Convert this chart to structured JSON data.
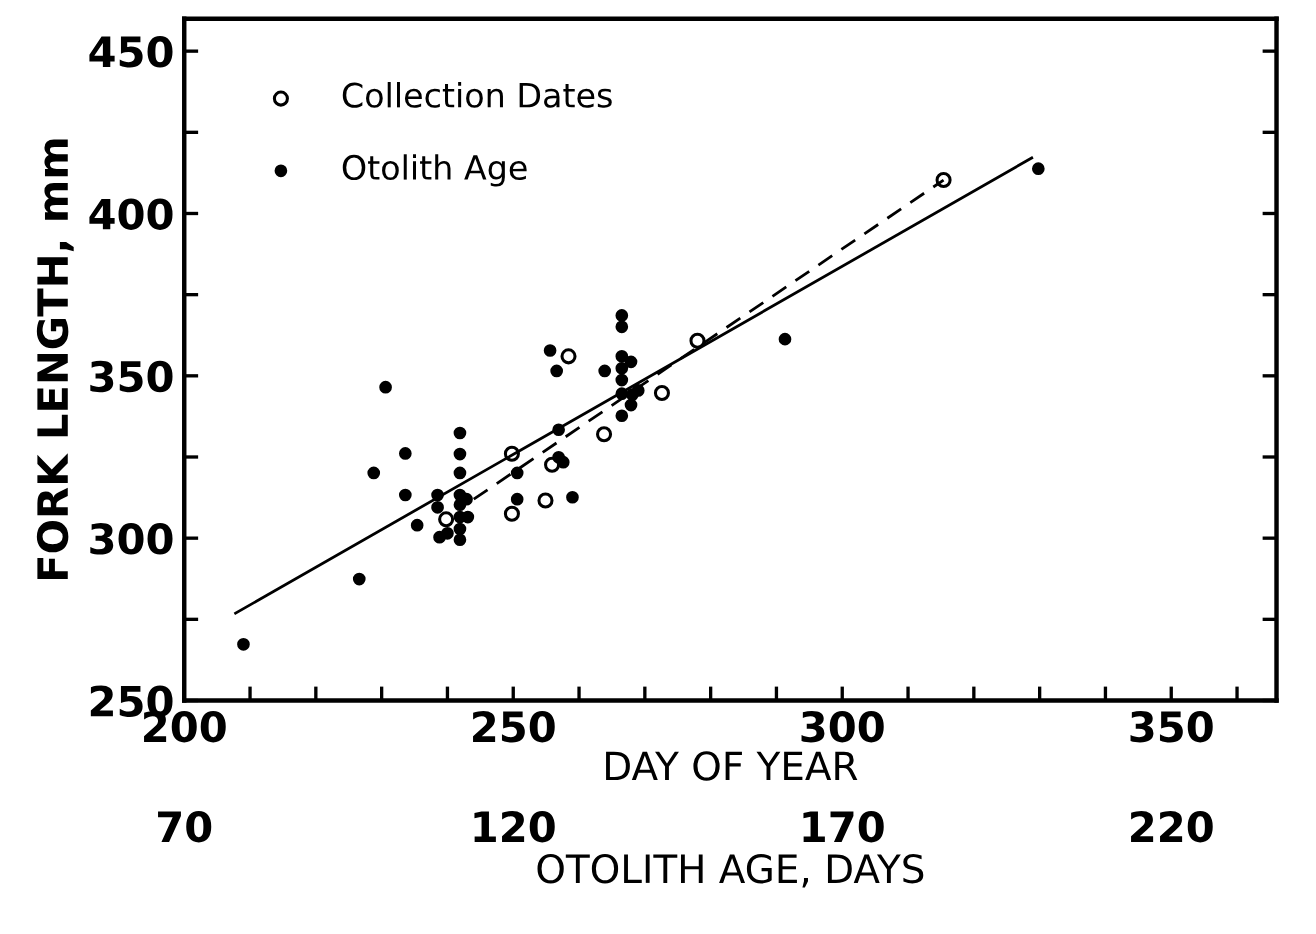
{
  "chart_data": {
    "type": "scatter",
    "xlabel": "DAY OF YEAR",
    "ylabel": "FORK LENGTH, mm",
    "x2label": "OTOLITH AGE, DAYS",
    "xlim": [
      200,
      366
    ],
    "ylim": [
      250,
      460
    ],
    "xticks": [
      200,
      {
        "value": 210,
        "label": null
      },
      {
        "value": 220,
        "label": null
      },
      {
        "value": 230,
        "label": null
      },
      {
        "value": 240,
        "label": null
      },
      250,
      {
        "value": 260,
        "label": null
      },
      {
        "value": 270,
        "label": null
      },
      {
        "value": 280,
        "label": null
      },
      {
        "value": 290,
        "label": null
      },
      300,
      {
        "value": 310,
        "label": null
      },
      {
        "value": 320,
        "label": null
      },
      {
        "value": 330,
        "label": null
      },
      {
        "value": 340,
        "label": null
      },
      350,
      {
        "value": 360,
        "label": null
      }
    ],
    "yticks": [
      250,
      {
        "value": 275,
        "label": null
      },
      300,
      {
        "value": 325,
        "label": null
      },
      350,
      {
        "value": 375,
        "label": null
      },
      400,
      {
        "value": 425,
        "label": null
      },
      450
    ],
    "x2lim": [
      70,
      236
    ],
    "x2ticks": [
      70,
      120,
      170,
      220
    ],
    "legend": "top left",
    "grid": false,
    "series": [
      {
        "name": "Collection Dates",
        "marker": "circle",
        "color": "#000000",
        "x": [
          239.8,
          249.8,
          249.8,
          254.9,
          255.9,
          258.4,
          263.8,
          272.6,
          278,
          315.4
        ],
        "values": [
          305.8,
          326,
          307.5,
          311.6,
          322.6,
          356,
          332,
          344.7,
          360.8,
          410.3
        ]
      },
      {
        "type": "line",
        "line_style": "dashed",
        "color": "#000000",
        "x": [
          244,
          315.4
        ],
        "values": [
          312,
          410.3
        ]
      },
      {
        "name": "Otolith Age",
        "marker": "circle",
        "color": "#000000",
        "x": [
          209,
          226.6,
          228.8,
          230.6,
          233.6,
          233.6,
          235.4,
          238.5,
          238.5,
          238.8,
          240,
          241.9,
          241.9,
          241.9,
          241.9,
          241.9,
          241.9,
          241.9,
          241.9,
          242.9,
          243.1,
          250.6,
          250.6,
          255.6,
          256.6,
          256.9,
          256.9,
          257.6,
          259,
          263.9,
          266.5,
          266.5,
          266.5,
          266.5,
          266.5,
          266.5,
          266.5,
          267.9,
          268.1,
          267.9,
          269,
          291.3,
          329.8
        ],
        "values": [
          267.3,
          287.4,
          320.1,
          346.5,
          326.1,
          313.3,
          304,
          313.3,
          309.5,
          300.3,
          301.5,
          332.4,
          325.9,
          320.1,
          313.3,
          310.3,
          306.5,
          302.8,
          299.5,
          312,
          306.5,
          320.1,
          312,
          357.8,
          351.5,
          333.4,
          324.9,
          323.4,
          312.6,
          351.5,
          368.6,
          365.1,
          356,
          352.3,
          348.7,
          344.5,
          337.7,
          354.3,
          344.2,
          341,
          345.5,
          361.3,
          413.8
        ]
      },
      {
        "type": "line",
        "line_style": "solid",
        "color": "#000000",
        "x": [
          207.8,
          328.8
        ],
        "values": [
          276.9,
          417.1
        ]
      }
    ]
  }
}
